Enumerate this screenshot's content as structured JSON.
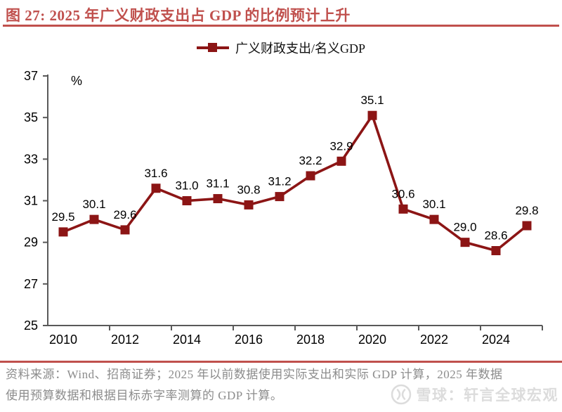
{
  "header": {
    "title": "图 27: 2025 年广义财政支出占 GDP 的比例预计上升"
  },
  "legend": {
    "label": "广义财政支出/名义GDP"
  },
  "chart_data": {
    "type": "line",
    "title": "图 27: 2025 年广义财政支出占 GDP 的比例预计上升",
    "unit_label": "%",
    "categories": [
      2010,
      2011,
      2012,
      2013,
      2014,
      2015,
      2016,
      2017,
      2018,
      2019,
      2020,
      2021,
      2022,
      2023,
      2024,
      2025
    ],
    "series": [
      {
        "name": "广义财政支出/名义GDP",
        "values": [
          29.5,
          30.1,
          29.6,
          31.6,
          31.0,
          31.1,
          30.8,
          31.2,
          32.2,
          32.9,
          35.1,
          30.6,
          30.1,
          29.0,
          28.6,
          29.8
        ]
      }
    ],
    "data_labels": true,
    "ylim": [
      25,
      37
    ],
    "yticks": [
      37,
      35,
      33,
      31,
      29,
      27,
      25
    ],
    "xtick_labels": [
      "2010",
      "2012",
      "2014",
      "2016",
      "2018",
      "2020",
      "2022",
      "2024"
    ],
    "grid": false,
    "legend_position": "top",
    "colors": {
      "line": "#8c1515",
      "axis": "#595959",
      "tick_text": "#000000",
      "accent": "#c0504d"
    }
  },
  "footer": {
    "line1": "资料来源：Wind、招商证券；2025 年以前数据使用实际支出和实际 GDP 计算，2025 年数据",
    "line2": "使用预算数据和根据目标赤字率测算的 GDP 计算。"
  },
  "watermark": {
    "logo": "xueqiu-circle-logo",
    "text": "雪球：轩言全球宏观"
  }
}
